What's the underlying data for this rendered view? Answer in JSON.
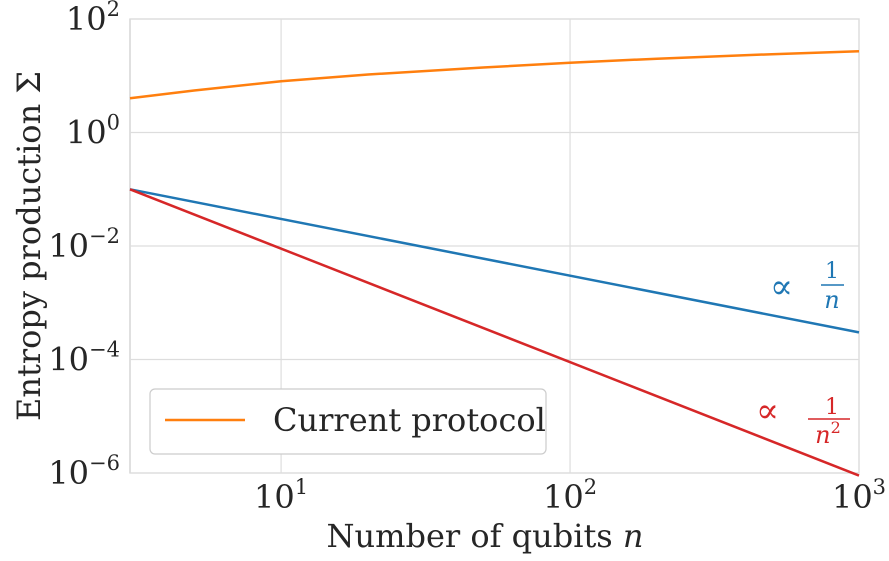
{
  "chart_data": {
    "type": "line",
    "xscale": "log",
    "yscale": "log",
    "xlim": [
      3,
      1000
    ],
    "ylim": [
      1e-06,
      100
    ],
    "xlabel": "Number of qubits",
    "xlabel_var": "n",
    "ylabel": "Entropy production",
    "ylabel_var": "Σ",
    "x_ticks": [
      {
        "value": 10,
        "base": "10",
        "exp": "1"
      },
      {
        "value": 100,
        "base": "10",
        "exp": "2"
      },
      {
        "value": 1000,
        "base": "10",
        "exp": "3"
      }
    ],
    "y_ticks": [
      {
        "value": 100,
        "base": "10",
        "exp": "2"
      },
      {
        "value": 1,
        "base": "10",
        "exp": "0"
      },
      {
        "value": 0.01,
        "base": "10",
        "exp": "−2"
      },
      {
        "value": 0.0001,
        "base": "10",
        "exp": "−4"
      },
      {
        "value": 1e-06,
        "base": "10",
        "exp": "−6"
      }
    ],
    "grid": true,
    "legend": {
      "placement": "lower-left"
    },
    "series": [
      {
        "name": "Current protocol",
        "color": "#ff7f0e",
        "in_legend": true,
        "x": [
          3,
          5,
          10,
          20,
          50,
          100,
          200,
          500,
          1000
        ],
        "y": [
          4,
          5.5,
          8,
          10.5,
          14,
          17,
          20,
          24,
          27
        ]
      },
      {
        "color": "#1f77b4",
        "in_legend": false,
        "x": [
          3,
          1000
        ],
        "y": [
          0.1,
          0.0003
        ]
      },
      {
        "color": "#d62728",
        "in_legend": false,
        "x": [
          3,
          1000
        ],
        "y": [
          0.1,
          9e-07
        ]
      }
    ],
    "annotations": [
      {
        "prefix": "∝",
        "numerator": "1",
        "denominator": "n",
        "color": "#1f77b4"
      },
      {
        "prefix": "∝",
        "numerator": "1",
        "denominator": "n",
        "denominator_exp": "2",
        "color": "#d62728"
      }
    ]
  }
}
